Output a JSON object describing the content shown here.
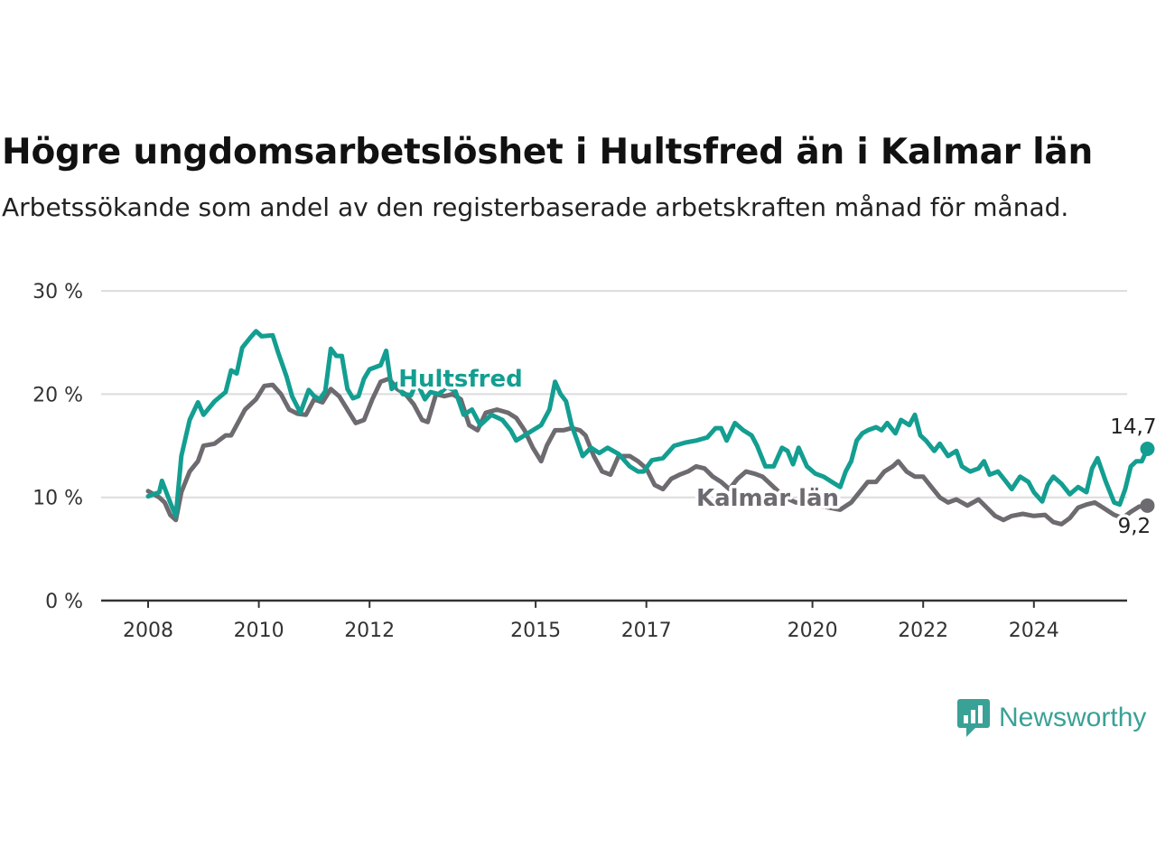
{
  "header": {
    "title": "Högre ungdomsarbetslöshet i Hultsfred än i Kalmar län",
    "subtitle": "Arbetssökande som andel av den registerbaserade arbetskraften månad för månad."
  },
  "brand": {
    "name": "Newsworthy",
    "icon": "bar-chart-speech-bubble-icon",
    "color": "#3aa196"
  },
  "chart_data": {
    "type": "line",
    "title": "Högre ungdomsarbetslöshet i Hultsfred än i Kalmar län",
    "xlabel": "",
    "ylabel": "",
    "xlim": [
      2008,
      2025.8
    ],
    "ylim": [
      0,
      30
    ],
    "x_ticks": [
      "2008",
      "2010",
      "2012",
      "2015",
      "2017",
      "2020",
      "2022",
      "2024"
    ],
    "y_ticks": [
      "0 %",
      "10 %",
      "20 %",
      "30 %"
    ],
    "grid": true,
    "legend": "inline labels",
    "series": [
      {
        "name": "Hultsfred",
        "color": "#139e91",
        "end_label": "14,7 %",
        "points": [
          [
            2008.0,
            10.1
          ],
          [
            2008.2,
            10.5
          ],
          [
            2008.25,
            11.6
          ],
          [
            2008.4,
            9.5
          ],
          [
            2008.5,
            8.2
          ],
          [
            2008.6,
            14.0
          ],
          [
            2008.75,
            17.5
          ],
          [
            2008.9,
            19.2
          ],
          [
            2009.0,
            18.0
          ],
          [
            2009.2,
            19.3
          ],
          [
            2009.4,
            20.2
          ],
          [
            2009.5,
            22.3
          ],
          [
            2009.6,
            22.0
          ],
          [
            2009.7,
            24.5
          ],
          [
            2009.85,
            25.5
          ],
          [
            2009.95,
            26.1
          ],
          [
            2010.05,
            25.6
          ],
          [
            2010.25,
            25.7
          ],
          [
            2010.35,
            24.0
          ],
          [
            2010.5,
            21.7
          ],
          [
            2010.6,
            19.8
          ],
          [
            2010.75,
            18.2
          ],
          [
            2010.9,
            20.4
          ],
          [
            2011.0,
            19.8
          ],
          [
            2011.1,
            19.5
          ],
          [
            2011.2,
            20.3
          ],
          [
            2011.3,
            24.4
          ],
          [
            2011.4,
            23.7
          ],
          [
            2011.5,
            23.7
          ],
          [
            2011.6,
            20.5
          ],
          [
            2011.7,
            19.6
          ],
          [
            2011.8,
            19.8
          ],
          [
            2011.9,
            21.5
          ],
          [
            2012.0,
            22.4
          ],
          [
            2012.2,
            22.8
          ],
          [
            2012.3,
            24.2
          ],
          [
            2012.4,
            20.5
          ],
          [
            2012.5,
            21.0
          ],
          [
            2012.6,
            20.0
          ],
          [
            2012.75,
            19.9
          ],
          [
            2012.85,
            21.2
          ],
          [
            2013.0,
            19.5
          ],
          [
            2013.1,
            20.2
          ],
          [
            2013.25,
            20.0
          ],
          [
            2013.4,
            20.7
          ],
          [
            2013.55,
            20.3
          ],
          [
            2013.7,
            18.0
          ],
          [
            2013.85,
            18.5
          ],
          [
            2014.0,
            17.0
          ],
          [
            2014.2,
            18.0
          ],
          [
            2014.4,
            17.5
          ],
          [
            2014.55,
            16.5
          ],
          [
            2014.65,
            15.5
          ],
          [
            2014.8,
            16.0
          ],
          [
            2014.95,
            16.5
          ],
          [
            2015.1,
            17.0
          ],
          [
            2015.25,
            18.5
          ],
          [
            2015.35,
            21.2
          ],
          [
            2015.45,
            20.0
          ],
          [
            2015.55,
            19.3
          ],
          [
            2015.65,
            17.0
          ],
          [
            2015.75,
            15.5
          ],
          [
            2015.85,
            14.0
          ],
          [
            2016.0,
            14.8
          ],
          [
            2016.15,
            14.3
          ],
          [
            2016.3,
            14.8
          ],
          [
            2016.5,
            14.2
          ],
          [
            2016.7,
            13.0
          ],
          [
            2016.85,
            12.5
          ],
          [
            2016.95,
            12.5
          ],
          [
            2017.1,
            13.6
          ],
          [
            2017.3,
            13.8
          ],
          [
            2017.5,
            15.0
          ],
          [
            2017.7,
            15.3
          ],
          [
            2017.9,
            15.5
          ],
          [
            2018.1,
            15.8
          ],
          [
            2018.25,
            16.7
          ],
          [
            2018.35,
            16.7
          ],
          [
            2018.45,
            15.5
          ],
          [
            2018.6,
            17.2
          ],
          [
            2018.75,
            16.5
          ],
          [
            2018.9,
            16.0
          ],
          [
            2019.0,
            15.0
          ],
          [
            2019.15,
            13.0
          ],
          [
            2019.3,
            13.0
          ],
          [
            2019.45,
            14.8
          ],
          [
            2019.55,
            14.5
          ],
          [
            2019.65,
            13.2
          ],
          [
            2019.75,
            14.8
          ],
          [
            2019.9,
            13.0
          ],
          [
            2020.05,
            12.3
          ],
          [
            2020.2,
            12.0
          ],
          [
            2020.35,
            11.5
          ],
          [
            2020.5,
            11.0
          ],
          [
            2020.6,
            12.5
          ],
          [
            2020.7,
            13.5
          ],
          [
            2020.8,
            15.5
          ],
          [
            2020.9,
            16.2
          ],
          [
            2021.0,
            16.5
          ],
          [
            2021.15,
            16.8
          ],
          [
            2021.25,
            16.5
          ],
          [
            2021.35,
            17.2
          ],
          [
            2021.5,
            16.2
          ],
          [
            2021.6,
            17.5
          ],
          [
            2021.75,
            17.0
          ],
          [
            2021.85,
            18.0
          ],
          [
            2021.95,
            16.0
          ],
          [
            2022.05,
            15.5
          ],
          [
            2022.2,
            14.5
          ],
          [
            2022.3,
            15.2
          ],
          [
            2022.45,
            14.0
          ],
          [
            2022.6,
            14.5
          ],
          [
            2022.7,
            13.0
          ],
          [
            2022.85,
            12.5
          ],
          [
            2023.0,
            12.8
          ],
          [
            2023.1,
            13.5
          ],
          [
            2023.2,
            12.2
          ],
          [
            2023.35,
            12.5
          ],
          [
            2023.5,
            11.5
          ],
          [
            2023.6,
            10.8
          ],
          [
            2023.75,
            12.0
          ],
          [
            2023.9,
            11.5
          ],
          [
            2024.0,
            10.5
          ],
          [
            2024.15,
            9.6
          ],
          [
            2024.25,
            11.2
          ],
          [
            2024.35,
            12.0
          ],
          [
            2024.5,
            11.3
          ],
          [
            2024.65,
            10.3
          ],
          [
            2024.8,
            11.0
          ],
          [
            2024.95,
            10.5
          ],
          [
            2025.05,
            12.8
          ],
          [
            2025.15,
            13.8
          ],
          [
            2025.3,
            11.5
          ],
          [
            2025.45,
            9.5
          ],
          [
            2025.55,
            9.3
          ],
          [
            2025.65,
            10.8
          ],
          [
            2025.75,
            13.0
          ],
          [
            2025.85,
            13.5
          ],
          [
            2025.95,
            13.5
          ],
          [
            2026.05,
            14.7
          ]
        ]
      },
      {
        "name": "Kalmar län",
        "color": "#6d6a70",
        "end_label": "9,2 %",
        "points": [
          [
            2008.0,
            10.6
          ],
          [
            2008.2,
            10.0
          ],
          [
            2008.3,
            9.5
          ],
          [
            2008.4,
            8.3
          ],
          [
            2008.5,
            7.8
          ],
          [
            2008.6,
            10.5
          ],
          [
            2008.75,
            12.5
          ],
          [
            2008.9,
            13.5
          ],
          [
            2009.0,
            15.0
          ],
          [
            2009.2,
            15.2
          ],
          [
            2009.4,
            16.0
          ],
          [
            2009.5,
            16.0
          ],
          [
            2009.6,
            17.0
          ],
          [
            2009.75,
            18.5
          ],
          [
            2009.95,
            19.5
          ],
          [
            2010.1,
            20.8
          ],
          [
            2010.25,
            20.9
          ],
          [
            2010.4,
            20.0
          ],
          [
            2010.55,
            18.5
          ],
          [
            2010.7,
            18.1
          ],
          [
            2010.85,
            18.0
          ],
          [
            2011.0,
            19.5
          ],
          [
            2011.15,
            19.2
          ],
          [
            2011.3,
            20.5
          ],
          [
            2011.45,
            19.8
          ],
          [
            2011.6,
            18.5
          ],
          [
            2011.75,
            17.2
          ],
          [
            2011.9,
            17.5
          ],
          [
            2012.05,
            19.5
          ],
          [
            2012.2,
            21.2
          ],
          [
            2012.35,
            21.5
          ],
          [
            2012.5,
            20.5
          ],
          [
            2012.65,
            20.0
          ],
          [
            2012.8,
            19.0
          ],
          [
            2012.95,
            17.5
          ],
          [
            2013.05,
            17.3
          ],
          [
            2013.2,
            20.0
          ],
          [
            2013.35,
            19.8
          ],
          [
            2013.5,
            20.0
          ],
          [
            2013.65,
            19.5
          ],
          [
            2013.8,
            17.0
          ],
          [
            2013.95,
            16.5
          ],
          [
            2014.1,
            18.2
          ],
          [
            2014.3,
            18.5
          ],
          [
            2014.5,
            18.2
          ],
          [
            2014.65,
            17.7
          ],
          [
            2014.8,
            16.5
          ],
          [
            2014.95,
            14.8
          ],
          [
            2015.1,
            13.5
          ],
          [
            2015.2,
            15.0
          ],
          [
            2015.35,
            16.5
          ],
          [
            2015.5,
            16.5
          ],
          [
            2015.65,
            16.7
          ],
          [
            2015.8,
            16.5
          ],
          [
            2015.9,
            16.0
          ],
          [
            2016.05,
            14.0
          ],
          [
            2016.2,
            12.5
          ],
          [
            2016.35,
            12.2
          ],
          [
            2016.5,
            14.0
          ],
          [
            2016.7,
            14.0
          ],
          [
            2016.85,
            13.5
          ],
          [
            2017.0,
            12.8
          ],
          [
            2017.15,
            11.2
          ],
          [
            2017.3,
            10.8
          ],
          [
            2017.45,
            11.8
          ],
          [
            2017.6,
            12.2
          ],
          [
            2017.75,
            12.5
          ],
          [
            2017.9,
            13.0
          ],
          [
            2018.05,
            12.8
          ],
          [
            2018.2,
            12.0
          ],
          [
            2018.35,
            11.5
          ],
          [
            2018.5,
            10.8
          ],
          [
            2018.65,
            11.8
          ],
          [
            2018.8,
            12.5
          ],
          [
            2018.95,
            12.3
          ],
          [
            2019.1,
            12.0
          ],
          [
            2019.3,
            11.0
          ],
          [
            2019.5,
            10.0
          ],
          [
            2019.7,
            9.5
          ],
          [
            2019.9,
            9.5
          ],
          [
            2020.1,
            9.2
          ],
          [
            2020.3,
            9.0
          ],
          [
            2020.5,
            8.8
          ],
          [
            2020.7,
            9.5
          ],
          [
            2020.85,
            10.5
          ],
          [
            2021.0,
            11.5
          ],
          [
            2021.15,
            11.5
          ],
          [
            2021.3,
            12.5
          ],
          [
            2021.45,
            13.0
          ],
          [
            2021.55,
            13.5
          ],
          [
            2021.7,
            12.5
          ],
          [
            2021.85,
            12.0
          ],
          [
            2022.0,
            12.0
          ],
          [
            2022.15,
            11.0
          ],
          [
            2022.3,
            10.0
          ],
          [
            2022.45,
            9.5
          ],
          [
            2022.6,
            9.8
          ],
          [
            2022.8,
            9.2
          ],
          [
            2023.0,
            9.8
          ],
          [
            2023.15,
            9.0
          ],
          [
            2023.3,
            8.2
          ],
          [
            2023.45,
            7.8
          ],
          [
            2023.6,
            8.2
          ],
          [
            2023.8,
            8.4
          ],
          [
            2024.0,
            8.2
          ],
          [
            2024.2,
            8.3
          ],
          [
            2024.35,
            7.6
          ],
          [
            2024.5,
            7.4
          ],
          [
            2024.65,
            8.0
          ],
          [
            2024.8,
            9.0
          ],
          [
            2024.95,
            9.3
          ],
          [
            2025.1,
            9.5
          ],
          [
            2025.25,
            9.0
          ],
          [
            2025.45,
            8.3
          ],
          [
            2025.6,
            8.0
          ],
          [
            2025.75,
            8.6
          ],
          [
            2025.9,
            9.1
          ],
          [
            2026.05,
            9.2
          ]
        ]
      }
    ]
  }
}
